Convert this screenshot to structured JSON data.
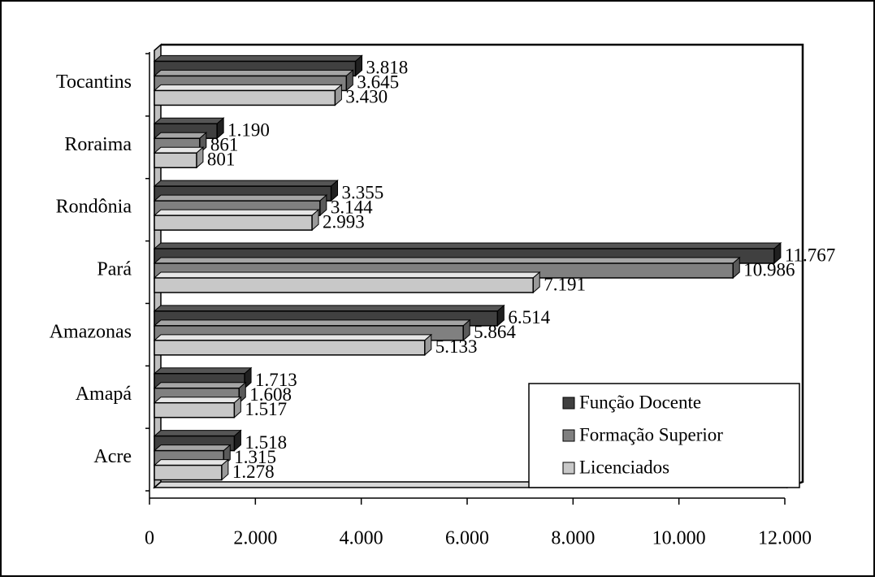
{
  "chart_data": {
    "type": "bar",
    "orientation": "horizontal",
    "style": "3d",
    "categories": [
      "Acre",
      "Amapá",
      "Amazonas",
      "Pará",
      "Rondônia",
      "Roraima",
      "Tocantins"
    ],
    "series": [
      {
        "name": "Função Docente",
        "values": [
          1518,
          1713,
          6514,
          11767,
          3355,
          1190,
          3818
        ],
        "labels": [
          "1.518",
          "1.713",
          "6.514",
          "11.767",
          "3.355",
          "1.190",
          "3.818"
        ],
        "color": "#404040"
      },
      {
        "name": "Formação Superior",
        "values": [
          1315,
          1608,
          5864,
          10986,
          3144,
          861,
          3645
        ],
        "labels": [
          "1.315",
          "1.608",
          "5.864",
          "10.986",
          "3.144",
          "861",
          "3.645"
        ],
        "color": "#808080"
      },
      {
        "name": "Licenciados",
        "values": [
          1278,
          1517,
          5133,
          7191,
          2993,
          801,
          3430
        ],
        "labels": [
          "1.278",
          "1.517",
          "5.133",
          "7.191",
          "2.993",
          "801",
          "3.430"
        ],
        "color": "#c8c8c8"
      }
    ],
    "xlim": [
      0,
      12000
    ],
    "x_ticks": [
      0,
      2000,
      4000,
      6000,
      8000,
      10000,
      12000
    ],
    "x_tick_labels": [
      "0",
      "2.000",
      "4.000",
      "6.000",
      "8.000",
      "10.000",
      "12.000"
    ],
    "legend_position": "bottom-right",
    "grid": false
  }
}
